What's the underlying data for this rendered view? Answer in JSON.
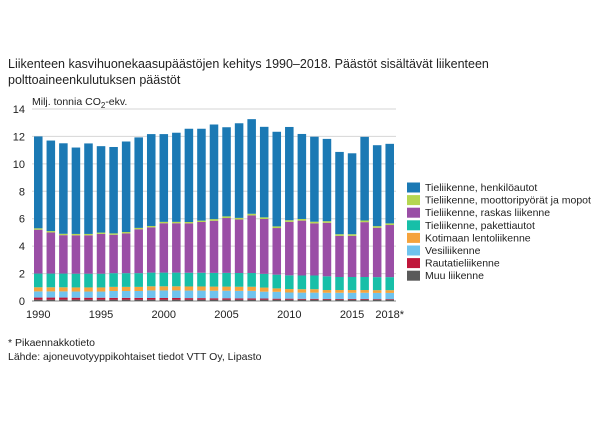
{
  "header": {
    "title": "Liikenteen kasvihuonekaasupäästöjen kehitys 1990–2018. Päästöt sisältävät liikenteen polttoaineenkulutuksen päästöt",
    "unit_prefix": "Milj. tonnia CO",
    "unit_sub": "2",
    "unit_suffix": "-ekv."
  },
  "footer": {
    "footnote": "* Pikaennakkotieto",
    "source": "Lähde: ajoneuvotyyppikohtaiset tiedot VTT Oy, Lipasto"
  },
  "chart_data": {
    "type": "bar",
    "stacked": true,
    "title": "Liikenteen kasvihuonekaasupäästöjen kehitys 1990–2018. Päästöt sisältävät liikenteen polttoaineenkulutuksen päästöt",
    "ylabel": "Milj. tonnia CO2-ekv.",
    "ylim": [
      0,
      14
    ],
    "yticks": [
      0,
      2,
      4,
      6,
      8,
      10,
      12,
      14
    ],
    "grid": true,
    "legend_position": "right",
    "categories": [
      "1990",
      "1991",
      "1992",
      "1993",
      "1994",
      "1995",
      "1996",
      "1997",
      "1998",
      "1999",
      "2000",
      "2001",
      "2002",
      "2003",
      "2004",
      "2005",
      "2006",
      "2007",
      "2008",
      "2009",
      "2010",
      "2011",
      "2012",
      "2013",
      "2014",
      "2015",
      "2016",
      "2017",
      "2018*"
    ],
    "xtick_labels": [
      "1990",
      "1995",
      "2000",
      "2005",
      "2010",
      "2015",
      "2018*"
    ],
    "xtick_indices": [
      0,
      5,
      10,
      15,
      20,
      25,
      28
    ],
    "series": [
      {
        "name": "Muu liikenne",
        "color": "#5a5a5a",
        "values": [
          0.1,
          0.1,
          0.1,
          0.1,
          0.1,
          0.1,
          0.1,
          0.1,
          0.1,
          0.1,
          0.1,
          0.1,
          0.1,
          0.1,
          0.1,
          0.1,
          0.1,
          0.1,
          0.1,
          0.1,
          0.1,
          0.1,
          0.1,
          0.1,
          0.1,
          0.1,
          0.1,
          0.1,
          0.1
        ]
      },
      {
        "name": "Rautatieliikenne",
        "color": "#c0163a",
        "values": [
          0.15,
          0.15,
          0.15,
          0.14,
          0.14,
          0.14,
          0.13,
          0.13,
          0.13,
          0.12,
          0.12,
          0.12,
          0.11,
          0.11,
          0.1,
          0.1,
          0.09,
          0.09,
          0.08,
          0.07,
          0.07,
          0.06,
          0.06,
          0.05,
          0.05,
          0.05,
          0.05,
          0.04,
          0.04
        ]
      },
      {
        "name": "Vesiliikenne",
        "color": "#6fc3ee",
        "values": [
          0.45,
          0.45,
          0.45,
          0.45,
          0.45,
          0.45,
          0.5,
          0.5,
          0.5,
          0.55,
          0.55,
          0.55,
          0.55,
          0.55,
          0.55,
          0.55,
          0.55,
          0.55,
          0.5,
          0.5,
          0.45,
          0.45,
          0.45,
          0.45,
          0.45,
          0.45,
          0.45,
          0.45,
          0.45
        ]
      },
      {
        "name": "Kotimaan lentoliikenne",
        "color": "#f5a33c",
        "values": [
          0.3,
          0.3,
          0.3,
          0.3,
          0.3,
          0.3,
          0.3,
          0.3,
          0.3,
          0.3,
          0.3,
          0.3,
          0.3,
          0.3,
          0.3,
          0.3,
          0.3,
          0.3,
          0.3,
          0.25,
          0.25,
          0.25,
          0.25,
          0.2,
          0.2,
          0.2,
          0.2,
          0.2,
          0.2
        ]
      },
      {
        "name": "Tieliikenne, pakettiautot",
        "color": "#17bfa8",
        "values": [
          1.0,
          1.0,
          1.0,
          1.0,
          1.0,
          1.0,
          1.0,
          1.0,
          1.0,
          1.0,
          1.0,
          1.0,
          1.0,
          1.0,
          1.0,
          1.0,
          1.0,
          1.0,
          1.0,
          1.0,
          1.0,
          1.0,
          1.0,
          1.0,
          0.95,
          0.95,
          0.95,
          0.95,
          0.95
        ]
      },
      {
        "name": "Tieliikenne, raskas liikenne",
        "color": "#9a4ea6",
        "values": [
          3.2,
          3.0,
          2.8,
          2.8,
          2.8,
          2.9,
          2.8,
          2.9,
          3.2,
          3.3,
          3.6,
          3.6,
          3.6,
          3.7,
          3.8,
          4.0,
          3.9,
          4.2,
          4.0,
          3.4,
          3.9,
          4.0,
          3.8,
          3.9,
          3.0,
          3.0,
          4.0,
          3.6,
          3.8
        ]
      },
      {
        "name": "Tieliikenne, moottoripyörät ja mopot",
        "color": "#b5d651",
        "values": [
          0.1,
          0.1,
          0.1,
          0.1,
          0.1,
          0.1,
          0.1,
          0.1,
          0.1,
          0.1,
          0.1,
          0.1,
          0.1,
          0.1,
          0.12,
          0.12,
          0.12,
          0.12,
          0.12,
          0.12,
          0.12,
          0.12,
          0.12,
          0.12,
          0.12,
          0.12,
          0.12,
          0.12,
          0.12
        ]
      },
      {
        "name": "Tieliikenne, henkilöautot",
        "color": "#1b79b4",
        "values": [
          6.7,
          6.6,
          6.6,
          6.3,
          6.6,
          6.3,
          6.3,
          6.6,
          6.6,
          6.7,
          6.4,
          6.5,
          6.8,
          6.7,
          6.9,
          6.5,
          6.9,
          6.9,
          6.6,
          6.9,
          6.8,
          6.2,
          6.2,
          6.0,
          6.0,
          5.9,
          6.1,
          5.9,
          5.8
        ]
      }
    ]
  }
}
